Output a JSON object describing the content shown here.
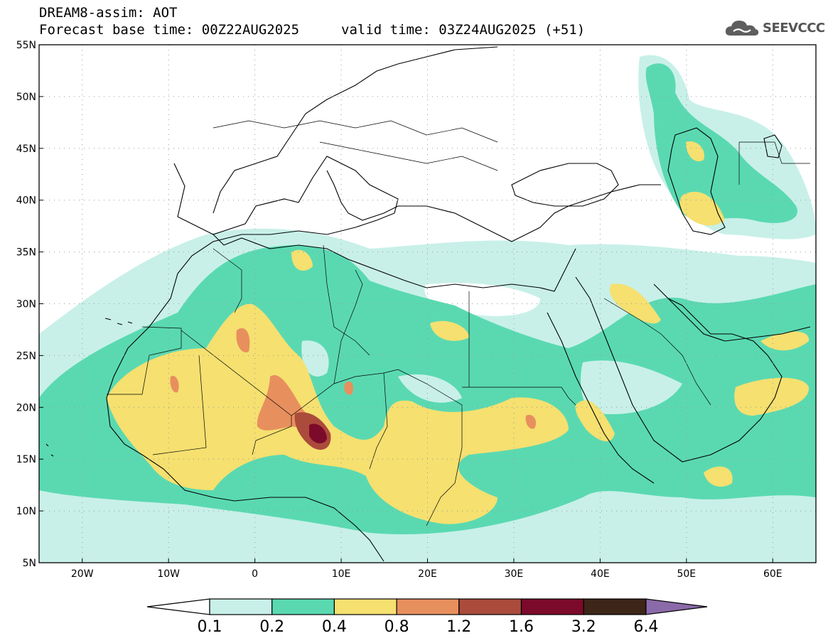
{
  "header": {
    "title_line1": "DREAM8-assim: AOT",
    "title_line2": "Forecast base time: 00Z22AUG2025",
    "valid_time": "valid time: 03Z24AUG2025 (+51)"
  },
  "logo": {
    "text": "SEEVCCC",
    "icon": "cloud-icon"
  },
  "map": {
    "lon_range": [
      -25,
      65
    ],
    "lat_range": [
      5,
      55
    ],
    "lat_ticks": [
      "5N",
      "10N",
      "15N",
      "20N",
      "25N",
      "30N",
      "35N",
      "40N",
      "45N",
      "50N",
      "55N"
    ],
    "lon_ticks": [
      "20W",
      "10W",
      "0",
      "10E",
      "20E",
      "30E",
      "40E",
      "50E",
      "60E"
    ],
    "grid": "dotted"
  },
  "colorbar": {
    "labels": [
      "0.1",
      "0.2",
      "0.4",
      "0.8",
      "1.2",
      "1.6",
      "3.2",
      "6.4"
    ],
    "colors": [
      "#ffffff",
      "#c8f0e8",
      "#5ad9b1",
      "#f5e070",
      "#e88f5e",
      "#aa4b3c",
      "#7c0a2a",
      "#3d2518",
      "#8a6aa8"
    ]
  }
}
